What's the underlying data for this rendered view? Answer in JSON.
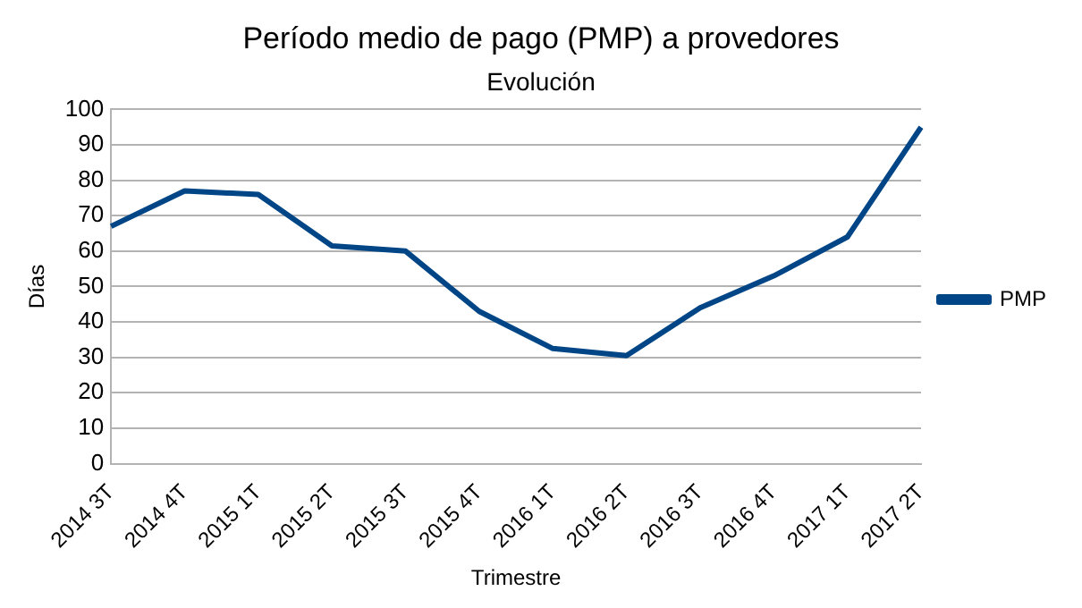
{
  "chart_data": {
    "type": "line",
    "title": "Período medio de pago (PMP) a provedores",
    "subtitle": "Evolución",
    "xlabel": "Trimestre",
    "ylabel": "Días",
    "categories": [
      "2014 3T",
      "2014 4T",
      "2015 1T",
      "2015 2T",
      "2015 3T",
      "2015 4T",
      "2016 1T",
      "2016 2T",
      "2016 3T",
      "2016 4T",
      "2017 1T",
      "2017 2T"
    ],
    "series": [
      {
        "name": "PMP",
        "color": "#004586",
        "values": [
          67,
          77,
          76,
          61.5,
          60,
          43,
          32.5,
          30.5,
          44,
          53,
          64,
          95
        ]
      }
    ],
    "ylim": [
      0,
      100
    ],
    "yticks": [
      0,
      10,
      20,
      30,
      40,
      50,
      60,
      70,
      80,
      90,
      100
    ],
    "grid": "y",
    "legend": "right",
    "marker": "none",
    "line_style": "solid"
  }
}
